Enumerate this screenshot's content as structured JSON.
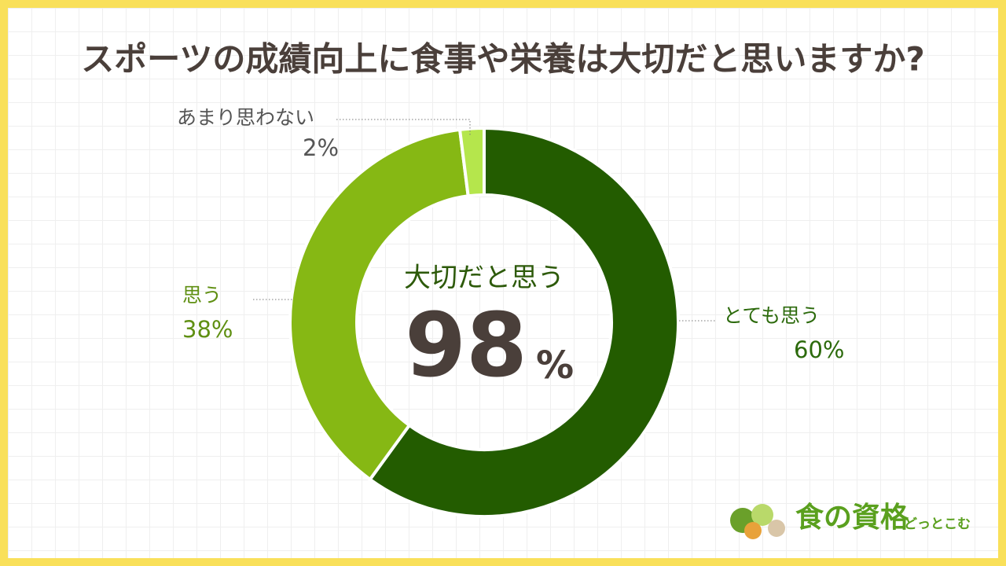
{
  "chart_data": {
    "type": "donut",
    "title": "スポーツの成績向上に食事や栄養は大切だと思いますか?",
    "categories": [
      "とても思う",
      "思う",
      "あまり思わない"
    ],
    "values": [
      60,
      38,
      2
    ],
    "value_labels": [
      "60%",
      "38%",
      "2%"
    ],
    "colors": [
      "#235c00",
      "#86b814",
      "#b5e64c"
    ],
    "center_text": "大切だと思う",
    "center_value": 98,
    "center_unit": "%"
  },
  "logo": {
    "main": "食の資格",
    "sub": "どっとこむ"
  }
}
